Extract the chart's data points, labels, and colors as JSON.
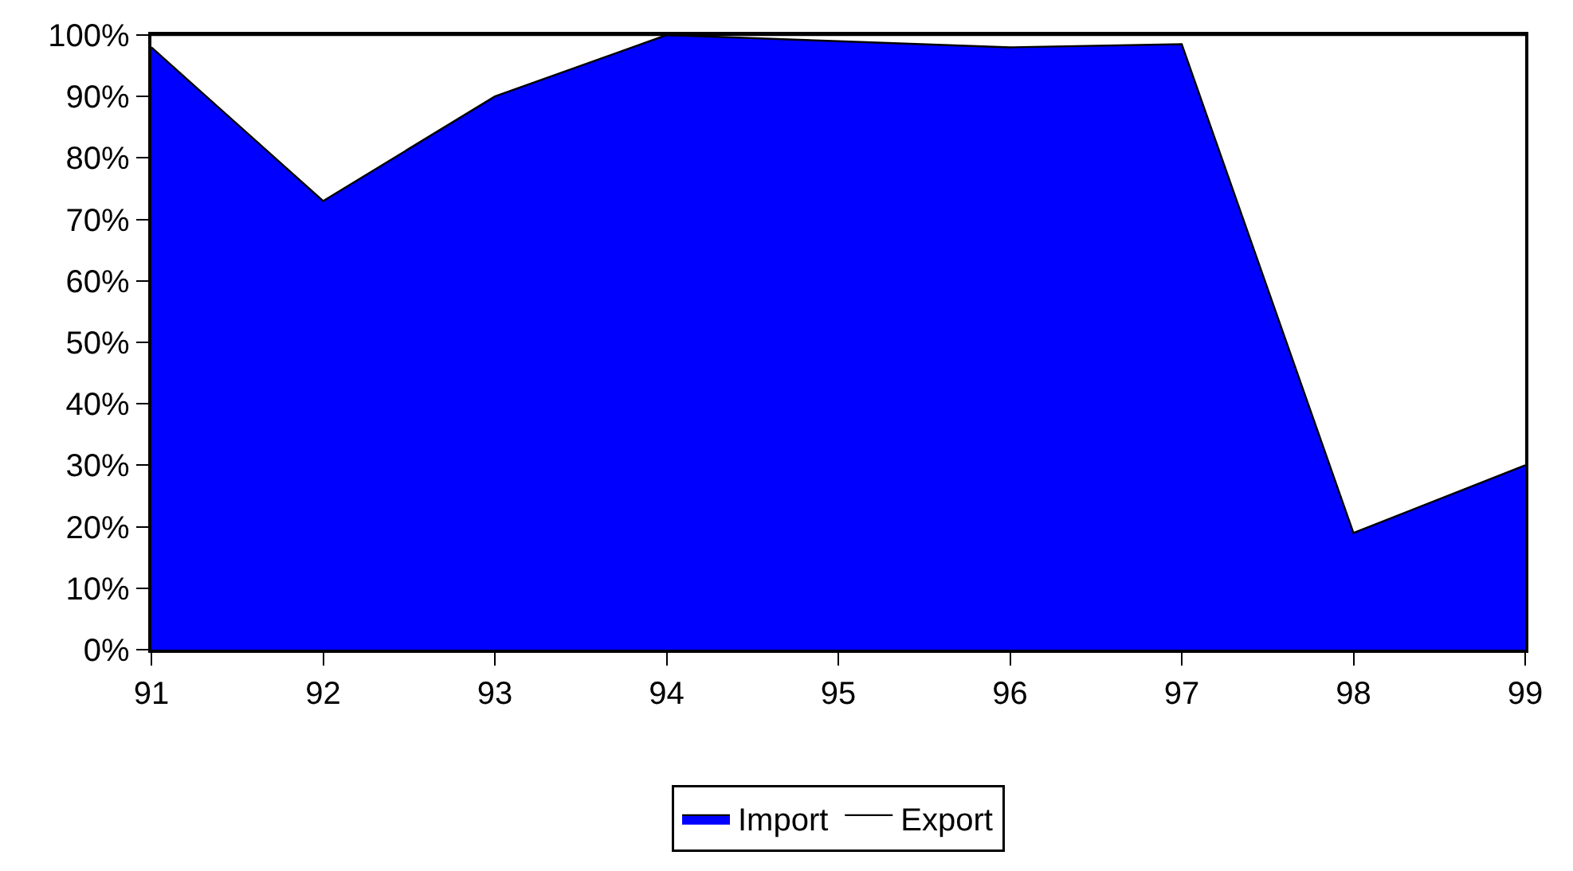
{
  "chart_data": {
    "type": "area",
    "stacked": true,
    "categories": [
      "91",
      "92",
      "93",
      "94",
      "95",
      "96",
      "97",
      "98",
      "99"
    ],
    "series": [
      {
        "name": "Import",
        "color": "#0000ff",
        "values": [
          98,
          73,
          90,
          100,
          99,
          98,
          98.5,
          19,
          30
        ]
      },
      {
        "name": "Export",
        "color": "#ffffff",
        "values": [
          2,
          27,
          10,
          0,
          1,
          2,
          1.5,
          81,
          70
        ]
      }
    ],
    "ylim": [
      0,
      100
    ],
    "yticks": [
      {
        "value": 0,
        "label": "0%"
      },
      {
        "value": 10,
        "label": "10%"
      },
      {
        "value": 20,
        "label": "20%"
      },
      {
        "value": 30,
        "label": "30%"
      },
      {
        "value": 40,
        "label": "40%"
      },
      {
        "value": 50,
        "label": "50%"
      },
      {
        "value": 60,
        "label": "60%"
      },
      {
        "value": 70,
        "label": "70%"
      },
      {
        "value": 80,
        "label": "80%"
      },
      {
        "value": 90,
        "label": "90%"
      },
      {
        "value": 100,
        "label": "100%"
      }
    ],
    "legend": "bottom"
  }
}
